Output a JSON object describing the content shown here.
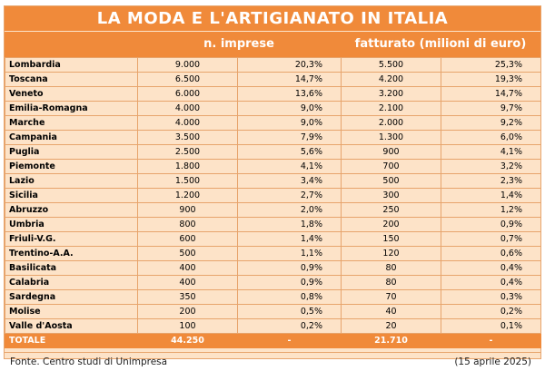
{
  "title": "LA MODA E L'ARTIGIANATO IN ITALIA",
  "headers": {
    "group1": "n. imprese",
    "group2": "fatturato (milioni di euro)"
  },
  "rows": [
    {
      "region": "Lombardia",
      "imprese": "9.000",
      "imprese_pct": "20,3%",
      "fatturato": "5.500",
      "fatturato_pct": "25,3%"
    },
    {
      "region": "Toscana",
      "imprese": "6.500",
      "imprese_pct": "14,7%",
      "fatturato": "4.200",
      "fatturato_pct": "19,3%"
    },
    {
      "region": "Veneto",
      "imprese": "6.000",
      "imprese_pct": "13,6%",
      "fatturato": "3.200",
      "fatturato_pct": "14,7%"
    },
    {
      "region": "Emilia-Romagna",
      "imprese": "4.000",
      "imprese_pct": "9,0%",
      "fatturato": "2.100",
      "fatturato_pct": "9,7%"
    },
    {
      "region": "Marche",
      "imprese": "4.000",
      "imprese_pct": "9,0%",
      "fatturato": "2.000",
      "fatturato_pct": "9,2%"
    },
    {
      "region": "Campania",
      "imprese": "3.500",
      "imprese_pct": "7,9%",
      "fatturato": "1.300",
      "fatturato_pct": "6,0%"
    },
    {
      "region": "Puglia",
      "imprese": "2.500",
      "imprese_pct": "5,6%",
      "fatturato": "900",
      "fatturato_pct": "4,1%"
    },
    {
      "region": "Piemonte",
      "imprese": "1.800",
      "imprese_pct": "4,1%",
      "fatturato": "700",
      "fatturato_pct": "3,2%"
    },
    {
      "region": "Lazio",
      "imprese": "1.500",
      "imprese_pct": "3,4%",
      "fatturato": "500",
      "fatturato_pct": "2,3%"
    },
    {
      "region": "Sicilia",
      "imprese": "1.200",
      "imprese_pct": "2,7%",
      "fatturato": "300",
      "fatturato_pct": "1,4%"
    },
    {
      "region": "Abruzzo",
      "imprese": "900",
      "imprese_pct": "2,0%",
      "fatturato": "250",
      "fatturato_pct": "1,2%"
    },
    {
      "region": "Umbria",
      "imprese": "800",
      "imprese_pct": "1,8%",
      "fatturato": "200",
      "fatturato_pct": "0,9%"
    },
    {
      "region": "Friuli-V.G.",
      "imprese": "600",
      "imprese_pct": "1,4%",
      "fatturato": "150",
      "fatturato_pct": "0,7%"
    },
    {
      "region": "Trentino-A.A.",
      "imprese": "500",
      "imprese_pct": "1,1%",
      "fatturato": "120",
      "fatturato_pct": "0,6%"
    },
    {
      "region": "Basilicata",
      "imprese": "400",
      "imprese_pct": "0,9%",
      "fatturato": "80",
      "fatturato_pct": "0,4%"
    },
    {
      "region": "Calabria",
      "imprese": "400",
      "imprese_pct": "0,9%",
      "fatturato": "80",
      "fatturato_pct": "0,4%"
    },
    {
      "region": "Sardegna",
      "imprese": "350",
      "imprese_pct": "0,8%",
      "fatturato": "70",
      "fatturato_pct": "0,3%"
    },
    {
      "region": "Molise",
      "imprese": "200",
      "imprese_pct": "0,5%",
      "fatturato": "40",
      "fatturato_pct": "0,2%"
    },
    {
      "region": "Valle d'Aosta",
      "imprese": "100",
      "imprese_pct": "0,2%",
      "fatturato": "20",
      "fatturato_pct": "0,1%"
    }
  ],
  "total": {
    "label": "TOTALE",
    "imprese": "44.250",
    "imprese_pct": "-",
    "fatturato": "21.710",
    "fatturato_pct": "-"
  },
  "footer": {
    "source": "Fonte. Centro studi di Unimpresa",
    "date": "(15 aprile 2025)"
  },
  "colors": {
    "accent": "#f08a3a",
    "background": "#fde3c8"
  }
}
